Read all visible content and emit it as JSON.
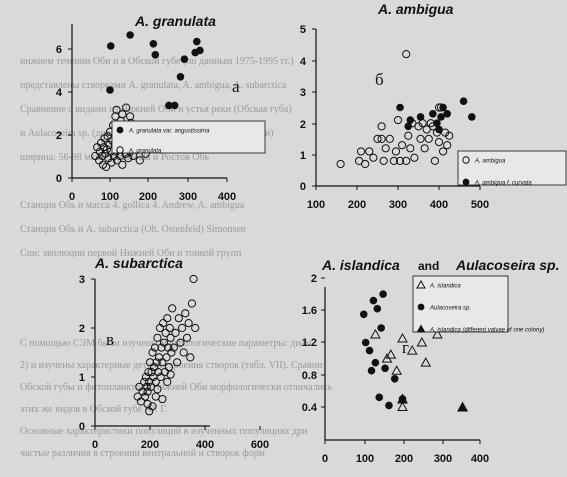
{
  "page_text": {
    "lines": [
      "нижнем течении Оби и в Обской губе (по данным 1975-1995 гг.)",
      "представлены створками A. granulata, A. ambigua, A. subarctica",
      "Сравнение с видами из Нижней Оби и устья реки (Обская губа)",
      "и Aulacoseira sp. (диаметр створки и высота загиба мантии)",
      "ширина: 56-98 мкм; 5. glaucata и Ростов Обь",
      "Станция Обь и масса 4. gollica 4. Andrew, A. ambigua",
      "Станция Обь и A. subarctica (Oh. Ostenfeld) Simonsen",
      "Спи: эволюции первой Нижней Оби и тонкой групп",
      "С помощью СЭМ были изучены морфологические параметры: диам.",
      "2) и изучены характерные детали строения створок (табл. VII). Сравни",
      "Обской губы и фитопланктона Нижней Оби морфологически отличались",
      "этих же видов в Обской губе (О. Г.",
      "Основные характеристики популяций в изученных популяциях дри",
      "частые различия в строении вентральной и створок форм"
    ]
  },
  "chart_data": [
    {
      "type": "scatter",
      "title": "A. granulata",
      "panel_letter": "а",
      "xlim": [
        0,
        400
      ],
      "ylim": [
        0,
        7
      ],
      "xticks": [
        "0",
        "100",
        "200",
        "300",
        "400"
      ],
      "yticks": [
        "0",
        "2",
        "4",
        "6"
      ],
      "series": [
        {
          "name": "A. granulata var. angustissima",
          "marker": "filled-circle",
          "points": [
            [
              100,
              6
            ],
            [
              98,
              4
            ],
            [
              150,
              6.5
            ],
            [
              210,
              6.1
            ],
            [
              215,
              5.6
            ],
            [
              250,
              3.3
            ],
            [
              265,
              3.3
            ],
            [
              280,
              4.6
            ],
            [
              290,
              5.4
            ],
            [
              318,
              5.7
            ],
            [
              322,
              6.2
            ],
            [
              330,
              5.8
            ]
          ]
        },
        {
          "name": "A. granulata",
          "marker": "open-circle",
          "points": [
            [
              60,
              1
            ],
            [
              65,
              1.4
            ],
            [
              70,
              0.8
            ],
            [
              72,
              1.2
            ],
            [
              75,
              1.6
            ],
            [
              78,
              1
            ],
            [
              80,
              0.6
            ],
            [
              82,
              1.4
            ],
            [
              84,
              1.8
            ],
            [
              86,
              1.1
            ],
            [
              88,
              0.5
            ],
            [
              90,
              1.3
            ],
            [
              92,
              1.9
            ],
            [
              94,
              0.9
            ],
            [
              96,
              1.5
            ],
            [
              98,
              2.1
            ],
            [
              100,
              1.2
            ],
            [
              102,
              0.7
            ],
            [
              104,
              1.7
            ],
            [
              106,
              2.4
            ],
            [
              108,
              1
            ],
            [
              110,
              1.5
            ],
            [
              112,
              2.8
            ],
            [
              114,
              1.2
            ],
            [
              116,
              0.8
            ],
            [
              118,
              1.9
            ],
            [
              120,
              2.2
            ],
            [
              122,
              1.4
            ],
            [
              124,
              1
            ],
            [
              126,
              2.6
            ],
            [
              128,
              1.7
            ],
            [
              130,
              0.6
            ],
            [
              132,
              1.3
            ],
            [
              134,
              2
            ],
            [
              136,
              1.6
            ],
            [
              138,
              1.1
            ],
            [
              140,
              2.3
            ],
            [
              142,
              1.5
            ],
            [
              145,
              0.9
            ],
            [
              148,
              1.8
            ],
            [
              150,
              1.2
            ],
            [
              152,
              2.5
            ],
            [
              155,
              1.4
            ],
            [
              158,
              1
            ],
            [
              160,
              1.9
            ],
            [
              165,
              1.3
            ],
            [
              170,
              1.7
            ],
            [
              175,
              0.8
            ],
            [
              180,
              1.5
            ],
            [
              190,
              1.1
            ],
            [
              200,
              2
            ],
            [
              115,
              3.1
            ],
            [
              140,
              3.2
            ],
            [
              150,
              2.8
            ],
            [
              130,
              2.9
            ]
          ]
        }
      ]
    },
    {
      "type": "scatter",
      "title": "A. ambigua",
      "panel_letter": "б",
      "xlim": [
        100,
        500
      ],
      "ylim": [
        0,
        5
      ],
      "xticks": [
        "100",
        "200",
        "300",
        "400",
        "500"
      ],
      "yticks": [
        "0",
        "1",
        "2",
        "3",
        "4",
        "5"
      ],
      "series": [
        {
          "name": "A. ambigua",
          "marker": "open-circle",
          "points": [
            [
              160,
              0.7
            ],
            [
              205,
              0.8
            ],
            [
              210,
              1.1
            ],
            [
              220,
              0.7
            ],
            [
              230,
              1.1
            ],
            [
              240,
              0.9
            ],
            [
              250,
              1.5
            ],
            [
              260,
              1.9
            ],
            [
              265,
              0.8
            ],
            [
              270,
              1.2
            ],
            [
              280,
              1.5
            ],
            [
              290,
              0.8
            ],
            [
              295,
              1.1
            ],
            [
              300,
              2.1
            ],
            [
              305,
              0.8
            ],
            [
              310,
              1.3
            ],
            [
              320,
              0.8
            ],
            [
              325,
              1.6
            ],
            [
              330,
              1.2
            ],
            [
              335,
              2
            ],
            [
              340,
              0.9
            ],
            [
              350,
              1.9
            ],
            [
              355,
              1.5
            ],
            [
              360,
              2
            ],
            [
              365,
              1.2
            ],
            [
              370,
              1.8
            ],
            [
              375,
              1.5
            ],
            [
              380,
              2
            ],
            [
              385,
              1.9
            ],
            [
              390,
              0.8
            ],
            [
              395,
              1.7
            ],
            [
              400,
              1.4
            ],
            [
              405,
              2.5
            ],
            [
              410,
              1.1
            ],
            [
              415,
              1.7
            ],
            [
              420,
              1.3
            ],
            [
              425,
              1.6
            ],
            [
              320,
              4.2
            ],
            [
              400,
              2.5
            ],
            [
              260,
              1.5
            ]
          ]
        },
        {
          "name": "A. ambigua f. curvata",
          "marker": "filled-circle",
          "points": [
            [
              305,
              2.5
            ],
            [
              325,
              1.9
            ],
            [
              330,
              2.1
            ],
            [
              355,
              2.2
            ],
            [
              385,
              2.3
            ],
            [
              400,
              1.8
            ],
            [
              405,
              2.2
            ],
            [
              410,
              2.5
            ],
            [
              420,
              2.3
            ],
            [
              460,
              2.7
            ],
            [
              480,
              2.2
            ],
            [
              395,
              2
            ]
          ]
        }
      ]
    },
    {
      "type": "scatter",
      "title": "A. subarctica",
      "panel_letter": "в",
      "xlim": [
        0,
        700
      ],
      "ylim": [
        0,
        3
      ],
      "xticks": [
        "0",
        "200",
        "400",
        "600"
      ],
      "yticks": [
        "0",
        "1",
        "2",
        "3"
      ],
      "series": [
        {
          "name": "A. subarctica",
          "marker": "open-circle",
          "points": [
            [
              260,
              0.6
            ],
            [
              270,
              0.8
            ],
            [
              280,
              0.5
            ],
            [
              290,
              0.7
            ],
            [
              300,
              0.9
            ],
            [
              305,
              0.6
            ],
            [
              310,
              1
            ],
            [
              315,
              0.8
            ],
            [
              320,
              0.7
            ],
            [
              325,
              1.1
            ],
            [
              330,
              0.9
            ],
            [
              335,
              1.3
            ],
            [
              340,
              0.8
            ],
            [
              345,
              1.1
            ],
            [
              350,
              1.5
            ],
            [
              355,
              1
            ],
            [
              360,
              1.2
            ],
            [
              365,
              1.6
            ],
            [
              370,
              0.9
            ],
            [
              375,
              1.3
            ],
            [
              380,
              1.8
            ],
            [
              385,
              1.1
            ],
            [
              390,
              1.4
            ],
            [
              395,
              2
            ],
            [
              400,
              1
            ],
            [
              405,
              1.6
            ],
            [
              410,
              1.3
            ],
            [
              415,
              2.1
            ],
            [
              420,
              1.7
            ],
            [
              425,
              1.1
            ],
            [
              430,
              1.9
            ],
            [
              435,
              1.4
            ],
            [
              440,
              2.2
            ],
            [
              445,
              1.6
            ],
            [
              450,
              1.2
            ],
            [
              455,
              2
            ],
            [
              460,
              1.8
            ],
            [
              465,
              1.5
            ],
            [
              470,
              2.4
            ],
            [
              480,
              1.6
            ],
            [
              490,
              1.9
            ],
            [
              500,
              1.3
            ],
            [
              510,
              2.2
            ],
            [
              520,
              1.7
            ],
            [
              530,
              2
            ],
            [
              540,
              1.5
            ],
            [
              550,
              2.3
            ],
            [
              560,
              1.8
            ],
            [
              570,
              2.1
            ],
            [
              580,
              1.4
            ],
            [
              590,
              2.5
            ],
            [
              600,
              3
            ],
            [
              610,
              2
            ],
            [
              330,
              0.3
            ],
            [
              350,
              0.4
            ],
            [
              370,
              0.6
            ],
            [
              320,
              0.45
            ],
            [
              410,
              0.55
            ],
            [
              440,
              0.9
            ],
            [
              460,
              1.05
            ],
            [
              380,
              0.75
            ]
          ]
        }
      ]
    },
    {
      "type": "scatter",
      "title": "A. islandica",
      "title_parts": [
        "A. islandica",
        "and",
        "Aulacoseira sp."
      ],
      "panel_letter": "г",
      "xlim": [
        0,
        400
      ],
      "ylim": [
        0.2,
        2.1
      ],
      "xticks": [
        "0",
        "100",
        "200",
        "300",
        "400"
      ],
      "yticks": [
        "0.4",
        "0.8",
        "1.2",
        "1.6",
        "2"
      ],
      "series": [
        {
          "name": "A. islandica",
          "marker": "open-triangle",
          "points": [
            [
              130,
              1.3
            ],
            [
              160,
              1
            ],
            [
              170,
              1.05
            ],
            [
              185,
              0.85
            ],
            [
              200,
              1.25
            ],
            [
              225,
              1.1
            ],
            [
              250,
              1.2
            ],
            [
              260,
              0.95
            ],
            [
              200,
              0.4
            ],
            [
              290,
              1.3
            ]
          ]
        },
        {
          "name": "Aulacoseira sp.",
          "marker": "filled-circle",
          "points": [
            [
              100,
              1.55
            ],
            [
              105,
              1.2
            ],
            [
              115,
              1.1
            ],
            [
              120,
              0.85
            ],
            [
              125,
              1.72
            ],
            [
              130,
              0.95
            ],
            [
              135,
              1.62
            ],
            [
              140,
              0.52
            ],
            [
              145,
              1.38
            ],
            [
              150,
              1.8
            ],
            [
              155,
              0.88
            ],
            [
              165,
              0.42
            ],
            [
              180,
              0.75
            ],
            [
              200,
              0.5
            ]
          ]
        },
        {
          "name": "A. islandica (different valvae of one colony)",
          "marker": "filled-triangle",
          "points": [
            [
              200,
              0.5
            ],
            [
              355,
              0.4
            ]
          ]
        }
      ]
    }
  ]
}
